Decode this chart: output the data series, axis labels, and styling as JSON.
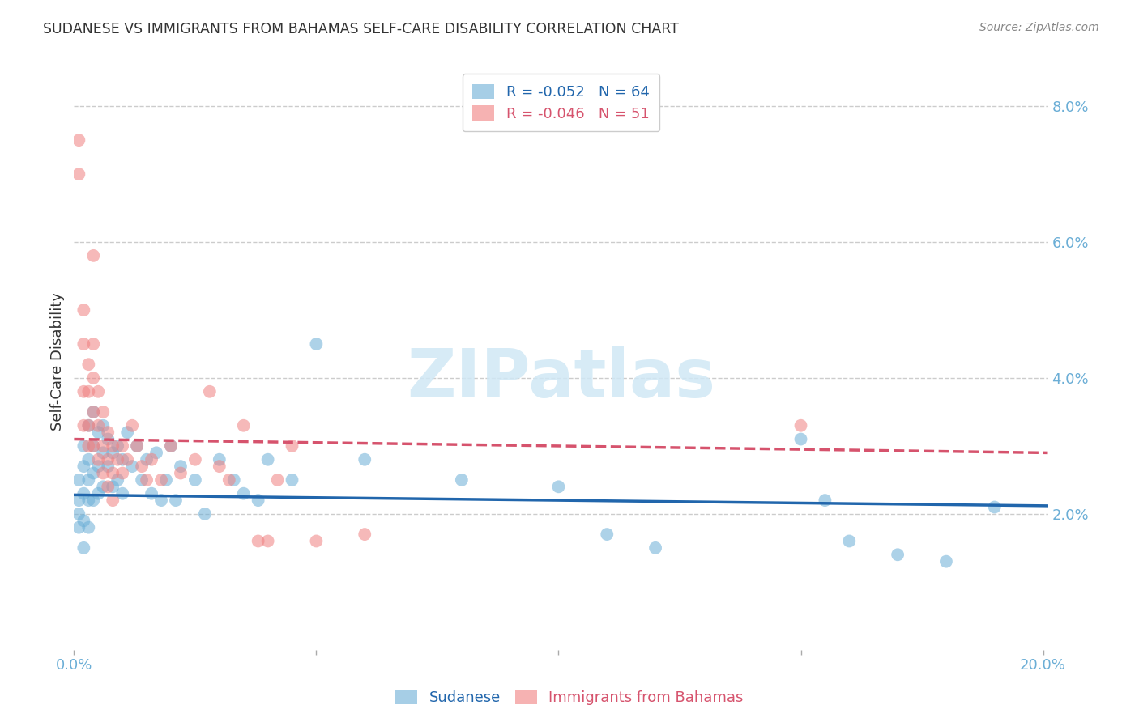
{
  "title": "SUDANESE VS IMMIGRANTS FROM BAHAMAS SELF-CARE DISABILITY CORRELATION CHART",
  "source": "Source: ZipAtlas.com",
  "ylabel": "Self-Care Disability",
  "series1_name": "Sudanese",
  "series2_name": "Immigrants from Bahamas",
  "series1_color": "#6baed6",
  "series2_color": "#f08080",
  "series1_line_color": "#2166ac",
  "series2_line_color": "#d6536d",
  "series1_R": -0.052,
  "series1_N": 64,
  "series2_R": -0.046,
  "series2_N": 51,
  "xlim": [
    0.0,
    0.2
  ],
  "ylim": [
    0.0,
    0.085
  ],
  "background_color": "#ffffff",
  "grid_color": "#cccccc",
  "title_color": "#333333",
  "axis_color": "#6baed6",
  "watermark_color": "#d0e8f5",
  "series1_points": [
    [
      0.001,
      0.022
    ],
    [
      0.001,
      0.025
    ],
    [
      0.001,
      0.02
    ],
    [
      0.001,
      0.018
    ],
    [
      0.002,
      0.03
    ],
    [
      0.002,
      0.027
    ],
    [
      0.002,
      0.023
    ],
    [
      0.002,
      0.019
    ],
    [
      0.002,
      0.015
    ],
    [
      0.003,
      0.033
    ],
    [
      0.003,
      0.028
    ],
    [
      0.003,
      0.025
    ],
    [
      0.003,
      0.022
    ],
    [
      0.003,
      0.018
    ],
    [
      0.004,
      0.035
    ],
    [
      0.004,
      0.03
    ],
    [
      0.004,
      0.026
    ],
    [
      0.004,
      0.022
    ],
    [
      0.005,
      0.032
    ],
    [
      0.005,
      0.027
    ],
    [
      0.005,
      0.023
    ],
    [
      0.006,
      0.033
    ],
    [
      0.006,
      0.029
    ],
    [
      0.006,
      0.024
    ],
    [
      0.007,
      0.031
    ],
    [
      0.007,
      0.027
    ],
    [
      0.008,
      0.029
    ],
    [
      0.008,
      0.024
    ],
    [
      0.009,
      0.03
    ],
    [
      0.009,
      0.025
    ],
    [
      0.01,
      0.028
    ],
    [
      0.01,
      0.023
    ],
    [
      0.011,
      0.032
    ],
    [
      0.012,
      0.027
    ],
    [
      0.013,
      0.03
    ],
    [
      0.014,
      0.025
    ],
    [
      0.015,
      0.028
    ],
    [
      0.016,
      0.023
    ],
    [
      0.017,
      0.029
    ],
    [
      0.018,
      0.022
    ],
    [
      0.019,
      0.025
    ],
    [
      0.02,
      0.03
    ],
    [
      0.021,
      0.022
    ],
    [
      0.022,
      0.027
    ],
    [
      0.025,
      0.025
    ],
    [
      0.027,
      0.02
    ],
    [
      0.03,
      0.028
    ],
    [
      0.033,
      0.025
    ],
    [
      0.035,
      0.023
    ],
    [
      0.038,
      0.022
    ],
    [
      0.04,
      0.028
    ],
    [
      0.045,
      0.025
    ],
    [
      0.05,
      0.045
    ],
    [
      0.06,
      0.028
    ],
    [
      0.08,
      0.025
    ],
    [
      0.1,
      0.024
    ],
    [
      0.11,
      0.017
    ],
    [
      0.12,
      0.015
    ],
    [
      0.15,
      0.031
    ],
    [
      0.155,
      0.022
    ],
    [
      0.16,
      0.016
    ],
    [
      0.17,
      0.014
    ],
    [
      0.18,
      0.013
    ],
    [
      0.19,
      0.021
    ]
  ],
  "series2_points": [
    [
      0.001,
      0.075
    ],
    [
      0.001,
      0.07
    ],
    [
      0.002,
      0.05
    ],
    [
      0.002,
      0.045
    ],
    [
      0.002,
      0.038
    ],
    [
      0.002,
      0.033
    ],
    [
      0.003,
      0.042
    ],
    [
      0.003,
      0.038
    ],
    [
      0.003,
      0.033
    ],
    [
      0.003,
      0.03
    ],
    [
      0.004,
      0.058
    ],
    [
      0.004,
      0.045
    ],
    [
      0.004,
      0.04
    ],
    [
      0.004,
      0.035
    ],
    [
      0.004,
      0.03
    ],
    [
      0.005,
      0.038
    ],
    [
      0.005,
      0.033
    ],
    [
      0.005,
      0.028
    ],
    [
      0.006,
      0.035
    ],
    [
      0.006,
      0.03
    ],
    [
      0.006,
      0.026
    ],
    [
      0.007,
      0.032
    ],
    [
      0.007,
      0.028
    ],
    [
      0.007,
      0.024
    ],
    [
      0.008,
      0.03
    ],
    [
      0.008,
      0.026
    ],
    [
      0.008,
      0.022
    ],
    [
      0.009,
      0.028
    ],
    [
      0.01,
      0.03
    ],
    [
      0.01,
      0.026
    ],
    [
      0.011,
      0.028
    ],
    [
      0.012,
      0.033
    ],
    [
      0.013,
      0.03
    ],
    [
      0.014,
      0.027
    ],
    [
      0.015,
      0.025
    ],
    [
      0.016,
      0.028
    ],
    [
      0.018,
      0.025
    ],
    [
      0.02,
      0.03
    ],
    [
      0.022,
      0.026
    ],
    [
      0.025,
      0.028
    ],
    [
      0.028,
      0.038
    ],
    [
      0.03,
      0.027
    ],
    [
      0.032,
      0.025
    ],
    [
      0.035,
      0.033
    ],
    [
      0.038,
      0.016
    ],
    [
      0.04,
      0.016
    ],
    [
      0.042,
      0.025
    ],
    [
      0.045,
      0.03
    ],
    [
      0.05,
      0.016
    ],
    [
      0.06,
      0.017
    ],
    [
      0.15,
      0.033
    ]
  ]
}
